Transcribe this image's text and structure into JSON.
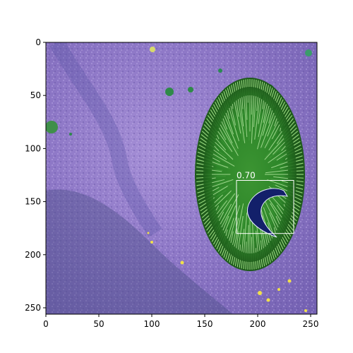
{
  "figure": {
    "x_axis": {
      "range": [
        0,
        256
      ],
      "ticks": [
        0,
        50,
        100,
        150,
        200,
        250
      ]
    },
    "y_axis": {
      "range": [
        256,
        0
      ],
      "inverted": true,
      "ticks": [
        0,
        50,
        100,
        150,
        200,
        250
      ]
    },
    "image": {
      "description_tags": [
        "false-color",
        "vegetation",
        "purple-ground",
        "green-plant"
      ]
    },
    "detections": [
      {
        "score_label": "0.70",
        "x_min": 180,
        "y_min": 130,
        "x_max": 234,
        "y_max": 180,
        "color": "#ffffff"
      }
    ],
    "colors": {
      "ground": "#8d77c6",
      "plant": "#2e8a2a",
      "plant_highlight": "#a7e98b",
      "object": "#13206a",
      "box": "#ffffff"
    }
  }
}
